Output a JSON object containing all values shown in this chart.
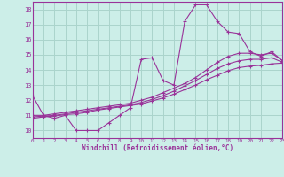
{
  "xlabel": "Windchill (Refroidissement éolien,°C)",
  "bg_color": "#cceee8",
  "grid_color": "#aad4cc",
  "line_color": "#993399",
  "spine_color": "#993399",
  "xlim": [
    0,
    23
  ],
  "ylim": [
    9.5,
    18.5
  ],
  "xticks": [
    0,
    1,
    2,
    3,
    4,
    5,
    6,
    7,
    8,
    9,
    10,
    11,
    12,
    13,
    14,
    15,
    16,
    17,
    18,
    19,
    20,
    21,
    22,
    23
  ],
  "yticks": [
    10,
    11,
    12,
    13,
    14,
    15,
    16,
    17,
    18
  ],
  "series1_x": [
    0,
    1,
    2,
    3,
    4,
    5,
    6,
    7,
    8,
    9,
    10,
    11,
    12,
    13,
    14,
    15,
    16,
    17,
    18,
    19,
    20,
    21,
    22,
    23
  ],
  "series1_y": [
    12.3,
    11.0,
    10.8,
    11.0,
    10.0,
    10.0,
    10.0,
    10.5,
    11.0,
    11.5,
    14.7,
    14.8,
    13.3,
    13.0,
    17.2,
    18.3,
    18.3,
    17.2,
    16.5,
    16.4,
    15.2,
    14.9,
    15.2,
    14.6
  ],
  "series2_x": [
    0,
    1,
    2,
    3,
    4,
    5,
    6,
    7,
    8,
    9,
    10,
    11,
    12,
    13,
    14,
    15,
    16,
    17,
    18,
    19,
    20,
    21,
    22,
    23
  ],
  "series2_y": [
    11.0,
    11.0,
    11.1,
    11.2,
    11.3,
    11.4,
    11.5,
    11.6,
    11.7,
    11.8,
    12.0,
    12.2,
    12.5,
    12.8,
    13.1,
    13.5,
    14.0,
    14.5,
    14.9,
    15.1,
    15.1,
    15.0,
    15.1,
    14.6
  ],
  "series3_x": [
    0,
    1,
    2,
    3,
    4,
    5,
    6,
    7,
    8,
    9,
    10,
    11,
    12,
    13,
    14,
    15,
    16,
    17,
    18,
    19,
    20,
    21,
    22,
    23
  ],
  "series3_y": [
    10.9,
    10.95,
    11.0,
    11.1,
    11.2,
    11.3,
    11.4,
    11.5,
    11.6,
    11.7,
    11.85,
    12.05,
    12.3,
    12.6,
    12.95,
    13.3,
    13.7,
    14.1,
    14.4,
    14.6,
    14.7,
    14.7,
    14.8,
    14.5
  ],
  "series4_x": [
    0,
    1,
    2,
    3,
    4,
    5,
    6,
    7,
    8,
    9,
    10,
    11,
    12,
    13,
    14,
    15,
    16,
    17,
    18,
    19,
    20,
    21,
    22,
    23
  ],
  "series4_y": [
    10.8,
    10.9,
    10.95,
    11.05,
    11.1,
    11.2,
    11.35,
    11.45,
    11.55,
    11.65,
    11.75,
    11.95,
    12.15,
    12.4,
    12.7,
    13.0,
    13.35,
    13.65,
    13.95,
    14.15,
    14.25,
    14.3,
    14.4,
    14.45
  ]
}
